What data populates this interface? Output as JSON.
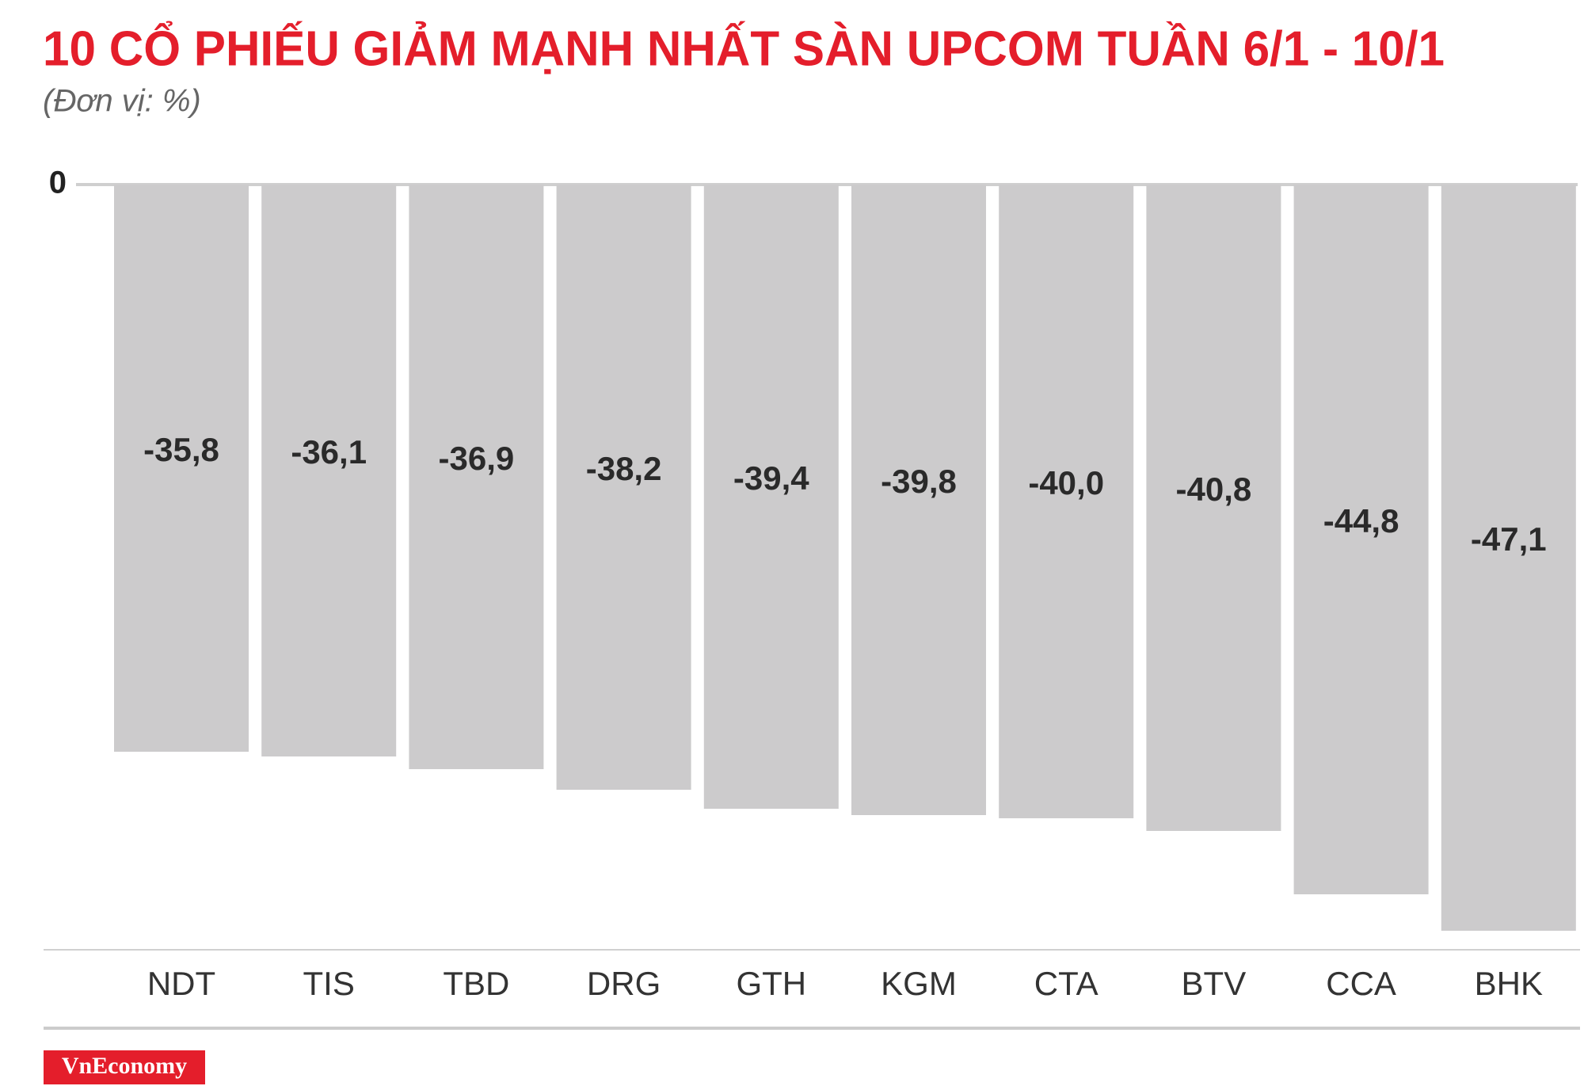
{
  "chart_data": {
    "type": "bar",
    "title": "10 CỔ PHIẾU GIẢM MẠNH NHẤT SÀN UPCOM TUẦN 6/1 - 10/1",
    "subtitle": "(Đơn vị: %)",
    "categories": [
      "NDT",
      "TIS",
      "TBD",
      "DRG",
      "GTH",
      "KGM",
      "CTA",
      "BTV",
      "CCA",
      "BHK"
    ],
    "values": [
      -35.8,
      -36.1,
      -36.9,
      -38.2,
      -39.4,
      -39.8,
      -40.0,
      -40.8,
      -44.8,
      -47.1
    ],
    "value_labels": [
      "-35,8",
      "-36,1",
      "-36,9",
      "-38,2",
      "-39,4",
      "-39,8",
      "-40,0",
      "-40,8",
      "-44,8",
      "-47,1"
    ],
    "color": "#cccbcc",
    "ylim": [
      -48.3,
      0
    ],
    "yticks": [
      0
    ],
    "grid": true
  },
  "brand": "VnEconomy"
}
